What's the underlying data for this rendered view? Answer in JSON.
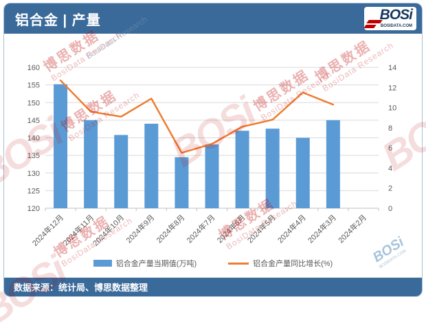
{
  "header": {
    "title": "铝合金 | 产量"
  },
  "logo": {
    "brand": "BOSi",
    "caption": "BOSIDATA.COM"
  },
  "footer": {
    "source": "数据来源：统计局、博思数据整理"
  },
  "watermark": {
    "brand": "BOSi",
    "caption": "BOSIDATA.COM",
    "cn": "博思数据",
    "en": "BosiData Research"
  },
  "colors": {
    "header_bg": "#3A6A9A",
    "bar": "#5B9BD5",
    "line": "#ED7D31",
    "grid": "#D9D9D9",
    "axis": "#BFBFBF",
    "tick_text": "#595959",
    "watermark_red": "#C00000"
  },
  "chart_data": {
    "type": "combo",
    "title": "",
    "xlabel": "",
    "ylabel_left": "铝合金产量当期值(万吨)",
    "ylabel_right": "铝合金产量同比增长(%)",
    "grid": true,
    "legend_position": "bottom",
    "categories": [
      "2024年12月",
      "2024年11月",
      "2024年10月",
      "2024年9月",
      "2024年8月",
      "2024年7月",
      "2024年6月",
      "2024年5月",
      "2024年4月",
      "2024年3月",
      "2024年2月"
    ],
    "series": [
      {
        "name": "铝合金产量当期值(万吨)",
        "type": "bar",
        "axis": "left",
        "color": "#5B9BD5",
        "values": [
          155.2,
          145.0,
          140.8,
          144.0,
          134.5,
          138.1,
          142.0,
          142.6,
          140.0,
          145.0,
          null
        ]
      },
      {
        "name": "铝合金产量同比增长(%)",
        "type": "line",
        "axis": "right",
        "color": "#ED7D31",
        "values": [
          12.7,
          9.6,
          9.1,
          10.9,
          5.5,
          6.4,
          8.1,
          8.8,
          11.5,
          10.3,
          null
        ]
      }
    ],
    "left_axis": {
      "min": 120,
      "max": 160,
      "step": 5,
      "ticks": [
        160,
        155,
        150,
        145,
        140,
        135,
        130,
        125,
        120
      ]
    },
    "right_axis": {
      "min": 0,
      "max": 14,
      "step": 2,
      "ticks": [
        14,
        12,
        10,
        8,
        6,
        4,
        2,
        0
      ]
    }
  }
}
